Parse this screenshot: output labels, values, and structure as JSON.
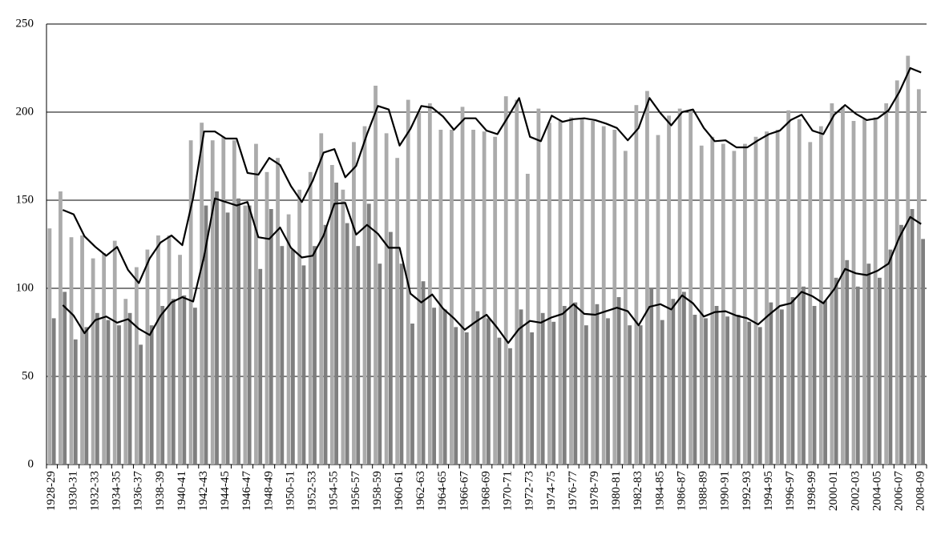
{
  "chart_data": {
    "type": "bar",
    "categories": [
      "1928-29",
      null,
      "1930-31",
      null,
      "1932-33",
      null,
      "1934-35",
      null,
      "1936-37",
      null,
      "1938-39",
      null,
      "1940-41",
      null,
      "1942-43",
      null,
      "1944-45",
      null,
      "1946-47",
      null,
      "1948-49",
      null,
      "1950-51",
      null,
      "1952-53",
      null,
      "1954-55",
      null,
      "1956-57",
      null,
      "1958-59",
      null,
      "1960-61",
      null,
      "1962-63",
      null,
      "1964-65",
      null,
      "1966-67",
      null,
      "1968-69",
      null,
      "1970-71",
      null,
      "1972-73",
      null,
      "1974-75",
      null,
      "1976-77",
      null,
      "1978-79",
      null,
      "1980-81",
      null,
      "1982-83",
      null,
      "1984-85",
      null,
      "1986-87",
      null,
      "1988-89",
      null,
      "1990-91",
      null,
      "1992-93",
      null,
      "1994-95",
      null,
      "1996-97",
      null,
      "1998-99",
      null,
      "2000-01",
      null,
      "2002-03",
      null,
      "2004-05",
      null,
      "2006-07",
      null,
      "2008-09"
    ],
    "series": [
      {
        "type": "bar",
        "color": "#ababab",
        "values": [
          134,
          155,
          129,
          130,
          117,
          120,
          127,
          94,
          112,
          122,
          130,
          130,
          119,
          184,
          194,
          184,
          186,
          184,
          147,
          182,
          166,
          174,
          142,
          156,
          166,
          188,
          170,
          156,
          183,
          192,
          215,
          188,
          174,
          207,
          200,
          205,
          190,
          190,
          203,
          190,
          189,
          186,
          209,
          207,
          165,
          202,
          194,
          195,
          197,
          196,
          195,
          192,
          190,
          178,
          204,
          212,
          187,
          198,
          202,
          201,
          181,
          186,
          182,
          178,
          182,
          186,
          189,
          190,
          201,
          196,
          183,
          192,
          205,
          203,
          195,
          196,
          197,
          205,
          218,
          232,
          213
        ]
      },
      {
        "type": "bar",
        "color": "#7f7f7f",
        "values": [
          83,
          98,
          71,
          78,
          86,
          82,
          79,
          86,
          68,
          79,
          90,
          94,
          96,
          89,
          147,
          155,
          143,
          151,
          147,
          111,
          145,
          124,
          122,
          113,
          124,
          136,
          160,
          137,
          124,
          148,
          114,
          132,
          114,
          80,
          104,
          89,
          88,
          78,
          75,
          87,
          83,
          72,
          66,
          88,
          75,
          86,
          81,
          90,
          92,
          79,
          91,
          83,
          95,
          79,
          79,
          100,
          82,
          94,
          98,
          85,
          83,
          90,
          84,
          85,
          81,
          78,
          92,
          88,
          95,
          101,
          90,
          93,
          106,
          116,
          101,
          114,
          106,
          122,
          136,
          145,
          128
        ]
      },
      {
        "type": "line",
        "color": "#000000",
        "values": [
          null,
          144.5,
          142,
          129.5,
          123.5,
          118.5,
          123.5,
          110.5,
          103,
          117,
          126,
          130,
          124.5,
          151.5,
          189,
          189,
          185,
          185,
          165.5,
          164.5,
          174,
          170,
          158,
          149,
          161,
          177,
          179,
          163,
          169.5,
          187.5,
          203.5,
          201.5,
          181,
          190.5,
          203.5,
          202.5,
          197.5,
          190,
          196.5,
          196.5,
          189.5,
          187.5,
          197.5,
          208,
          186,
          183.5,
          198,
          194.5,
          196,
          196.5,
          195.5,
          193.5,
          191,
          184,
          191,
          208,
          199.5,
          192.5,
          200,
          201.5,
          191,
          183.5,
          184,
          180,
          180,
          184,
          187.5,
          189.5,
          195.5,
          198.5,
          189.5,
          187.5,
          198.5,
          204,
          199,
          195.5,
          196.5,
          201,
          211.5,
          225,
          222.5
        ]
      },
      {
        "type": "line",
        "color": "#000000",
        "values": [
          null,
          90.5,
          84.5,
          74.5,
          82,
          84,
          80.5,
          82.5,
          77,
          73.5,
          84.5,
          92,
          95,
          92.5,
          118,
          151,
          149,
          147,
          149,
          129,
          128,
          134.5,
          123,
          117.5,
          118.5,
          130,
          148,
          148.5,
          130.5,
          136,
          131,
          123,
          123,
          97,
          92,
          96.5,
          88.5,
          83,
          76.5,
          81,
          85,
          77.5,
          69,
          77,
          81.5,
          80.5,
          83.5,
          85.5,
          91,
          85.5,
          85,
          87,
          89,
          87,
          79,
          89.5,
          91,
          88,
          96,
          91.5,
          84,
          86.5,
          87,
          84.5,
          83,
          79.5,
          85,
          90,
          91.5,
          98,
          95.5,
          91.5,
          99.5,
          111,
          108.5,
          107.5,
          110,
          114,
          129,
          140.5,
          136.5
        ]
      }
    ],
    "ylim": [
      0,
      250
    ],
    "yticks": [
      0,
      50,
      100,
      150,
      200,
      250
    ],
    "grid": true
  }
}
